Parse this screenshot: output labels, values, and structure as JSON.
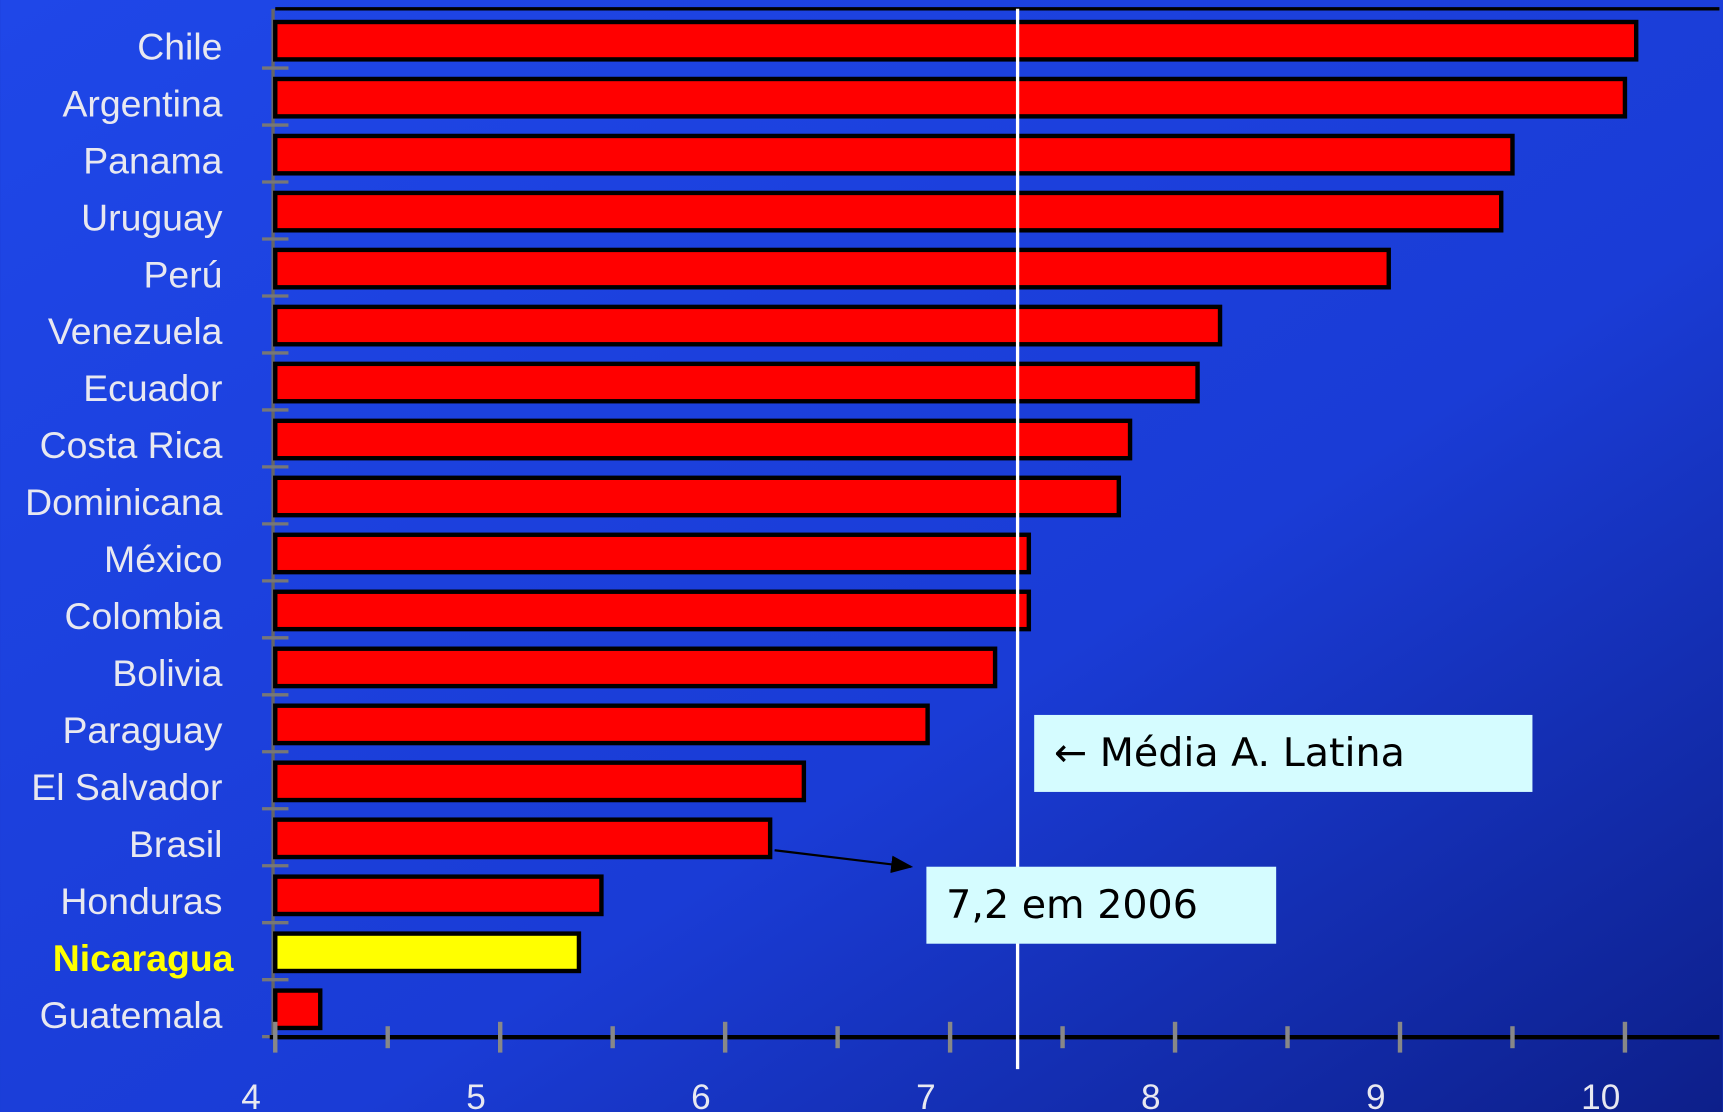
{
  "chart_data": {
    "type": "hbar",
    "categories": [
      "Chile",
      "Argentina",
      "Panama",
      "Uruguay",
      "Perú",
      "Venezuela",
      "Ecuador",
      "Costa Rica",
      "Dominicana",
      "México",
      "Colombia",
      "Bolivia",
      "Paraguay",
      "El Salvador",
      "Brasil",
      "Honduras",
      "Nicaragua",
      "Guatemala"
    ],
    "values": [
      10.05,
      10.0,
      9.5,
      9.45,
      8.95,
      8.2,
      8.1,
      7.8,
      7.75,
      7.35,
      7.35,
      7.2,
      6.9,
      6.35,
      6.2,
      5.45,
      5.35,
      4.2
    ],
    "colors": [
      "#ff0000",
      "#ff0000",
      "#ff0000",
      "#ff0000",
      "#ff0000",
      "#ff0000",
      "#ff0000",
      "#ff0000",
      "#ff0000",
      "#ff0000",
      "#ff0000",
      "#ff0000",
      "#ff0000",
      "#ff0000",
      "#ff0000",
      "#ff0000",
      "#ffff00",
      "#ff0000"
    ],
    "color": "#ff0000",
    "xlim": [
      4,
      10.42
    ],
    "xticks": [
      4,
      5,
      6,
      7,
      8,
      9,
      10
    ],
    "minor_xticks": [
      4.5,
      5.5,
      6.5,
      7.5,
      8.5,
      9.5
    ],
    "mean_line": 7.3,
    "annotations": [
      "← Média A. Latina",
      "7,2 em 2006"
    ]
  }
}
